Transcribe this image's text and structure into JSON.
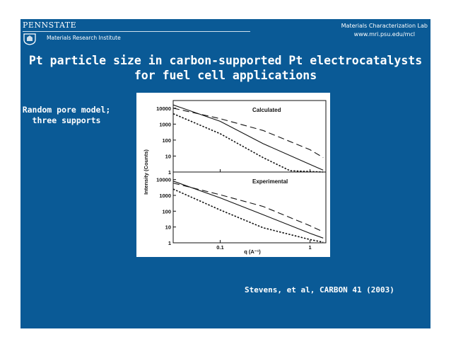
{
  "header": {
    "logo_text": "PENNSTATE",
    "institute": "Materials Research Institute",
    "lab_name": "Materials Characterization Lab",
    "lab_url": "www.mri.psu.edu/mcl",
    "colors": {
      "slide_bg": "#0a5a96",
      "text": "#ffffff"
    }
  },
  "title": {
    "line1": "Pt particle size in carbon-supported Pt electrocatalysts",
    "line2": "for fuel cell applications"
  },
  "side_note": {
    "line1": "Random pore model;",
    "line2": "three supports"
  },
  "citation": "Stevens, et al, CARBON 41 (2003)",
  "chart_data": {
    "type": "line",
    "xlabel": "q (A⁻¹)",
    "ylabel": "Intensity (Counts)",
    "xscale": "log",
    "yscale": "log",
    "xlim": [
      0.03,
      1.5
    ],
    "x_ticks": [
      "0.1",
      "1"
    ],
    "panels": [
      {
        "name": "Calculated",
        "ylim": [
          1,
          30000
        ],
        "y_ticks": [
          "10000",
          "1000",
          "100",
          "10",
          "1"
        ],
        "series": [
          {
            "style": "solid",
            "points": [
              [
                0.03,
                16000
              ],
              [
                0.1,
                1500
              ],
              [
                0.3,
                60
              ],
              [
                1,
                3
              ],
              [
                1.4,
                1.3
              ]
            ]
          },
          {
            "style": "dashed",
            "points": [
              [
                0.03,
                10000
              ],
              [
                0.1,
                2200
              ],
              [
                0.3,
                400
              ],
              [
                1,
                25
              ],
              [
                1.4,
                8
              ]
            ]
          },
          {
            "style": "dotted",
            "points": [
              [
                0.03,
                4500
              ],
              [
                0.1,
                250
              ],
              [
                0.3,
                8
              ],
              [
                0.6,
                1.2
              ],
              [
                1.4,
                0.7
              ]
            ]
          }
        ]
      },
      {
        "name": "Experimental",
        "ylim": [
          1,
          30000
        ],
        "y_ticks": [
          "10000",
          "1000",
          "100",
          "10",
          "1"
        ],
        "series": [
          {
            "style": "solid",
            "points": [
              [
                0.03,
                8000
              ],
              [
                0.1,
                700
              ],
              [
                0.3,
                60
              ],
              [
                1,
                4
              ],
              [
                1.4,
                2
              ]
            ]
          },
          {
            "style": "dashed",
            "points": [
              [
                0.03,
                6000
              ],
              [
                0.1,
                1100
              ],
              [
                0.3,
                200
              ],
              [
                1,
                12
              ],
              [
                1.4,
                5
              ]
            ]
          },
          {
            "style": "dotted",
            "points": [
              [
                0.03,
                2500
              ],
              [
                0.1,
                120
              ],
              [
                0.3,
                9
              ],
              [
                1,
                1.6
              ],
              [
                1.4,
                1.1
              ]
            ]
          }
        ]
      }
    ]
  }
}
